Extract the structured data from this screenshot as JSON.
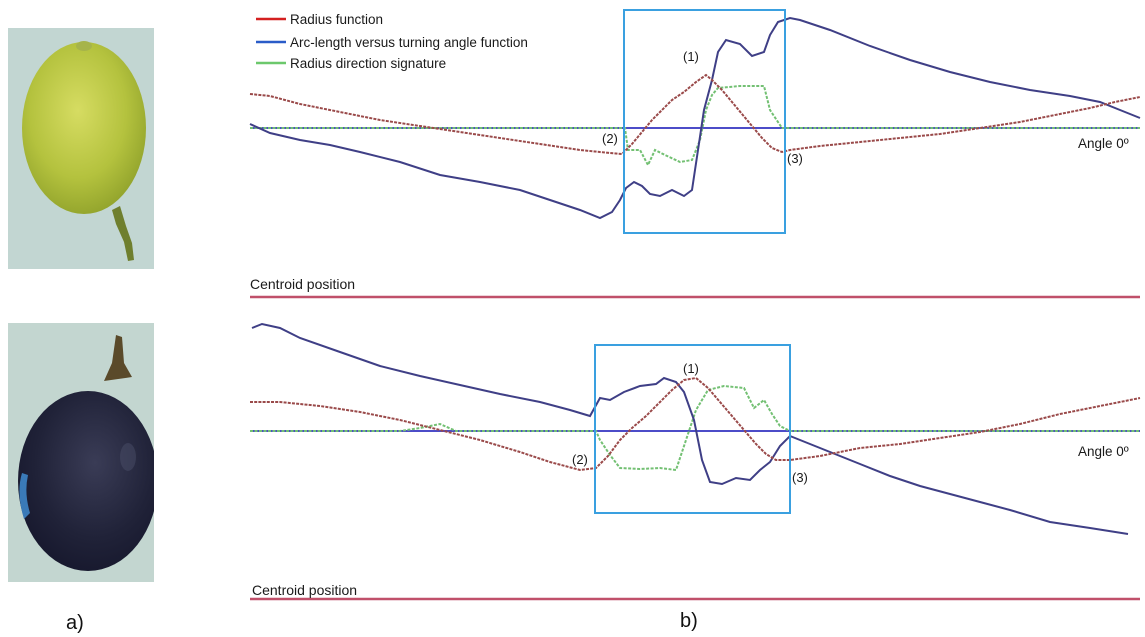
{
  "legend": {
    "radius": "Radius function",
    "arclength": "Arc-length versus turning angle function",
    "direction": "Radius direction signature"
  },
  "colors": {
    "radius": "#9a4a4a",
    "arclength": "#3f3f86",
    "direction": "#73c073",
    "highlight": "#3aa0e0",
    "centroid_line": "#c0506a",
    "angle_line": "#4c4cc8",
    "legend_radius": "#d42020",
    "legend_arclength": "#2a5cc8",
    "legend_direction": "#6cc86c"
  },
  "panel_a_label": "a)",
  "panel_b_label": "b)",
  "top_plot": {
    "angle_label": "Angle 0º",
    "centroid_label": "Centroid position",
    "markers": {
      "m1": "(1)",
      "m2": "(2)",
      "m3": "(3)"
    },
    "fruit": "green-grape"
  },
  "bottom_plot": {
    "angle_label": "Angle 0º",
    "centroid_label": "Centroid position",
    "markers": {
      "m1": "(1)",
      "m2": "(2)",
      "m3": "(3)"
    },
    "fruit": "black-grape"
  }
}
